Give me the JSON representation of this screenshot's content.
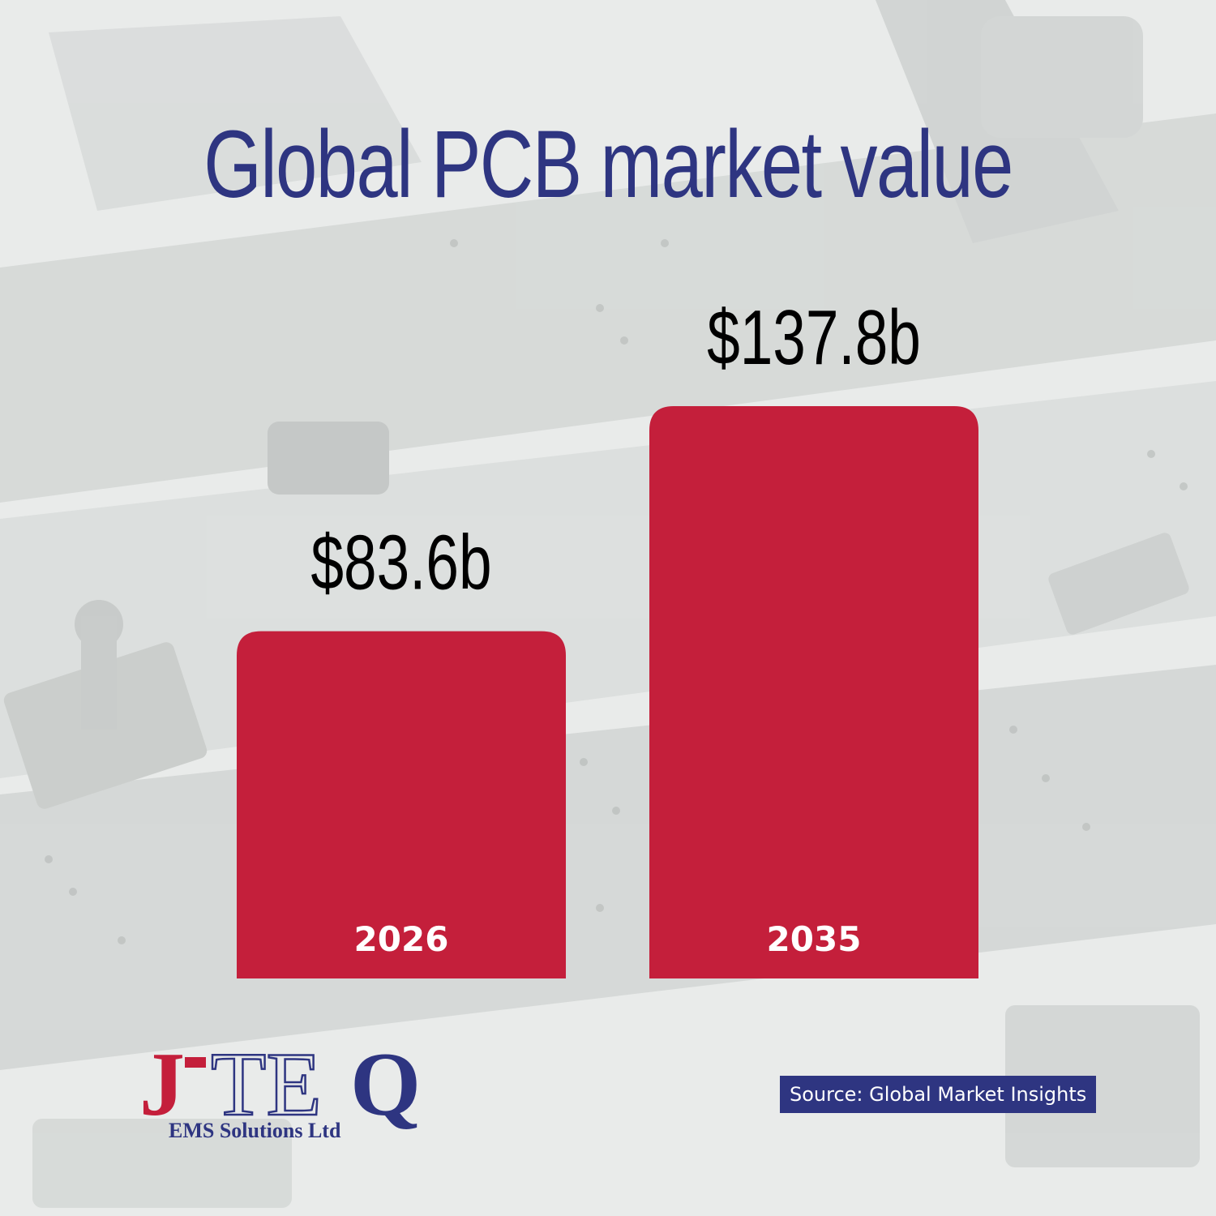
{
  "title": "Global PCB market value",
  "colors": {
    "title": "#2e3581",
    "bar": "#c41f3b",
    "value_label": "#000000",
    "category_label": "#ffffff",
    "source_bg": "#2e3581",
    "logo_red": "#c41f3b",
    "logo_blue": "#2e3581"
  },
  "chart_data": {
    "type": "bar",
    "title": "Global PCB market value",
    "categories": [
      "2026",
      "2035"
    ],
    "values": [
      83.6,
      137.8
    ],
    "value_labels": [
      "$83.6b",
      "$137.8b"
    ],
    "unit": "billion USD",
    "xlabel": "",
    "ylabel": "",
    "grid": false,
    "axes_visible": false
  },
  "logo": {
    "j": "J",
    "dash": "-",
    "te": "TE",
    "q": "Q",
    "subtitle": "EMS Solutions Ltd"
  },
  "source": "Source: Global Market Insights"
}
